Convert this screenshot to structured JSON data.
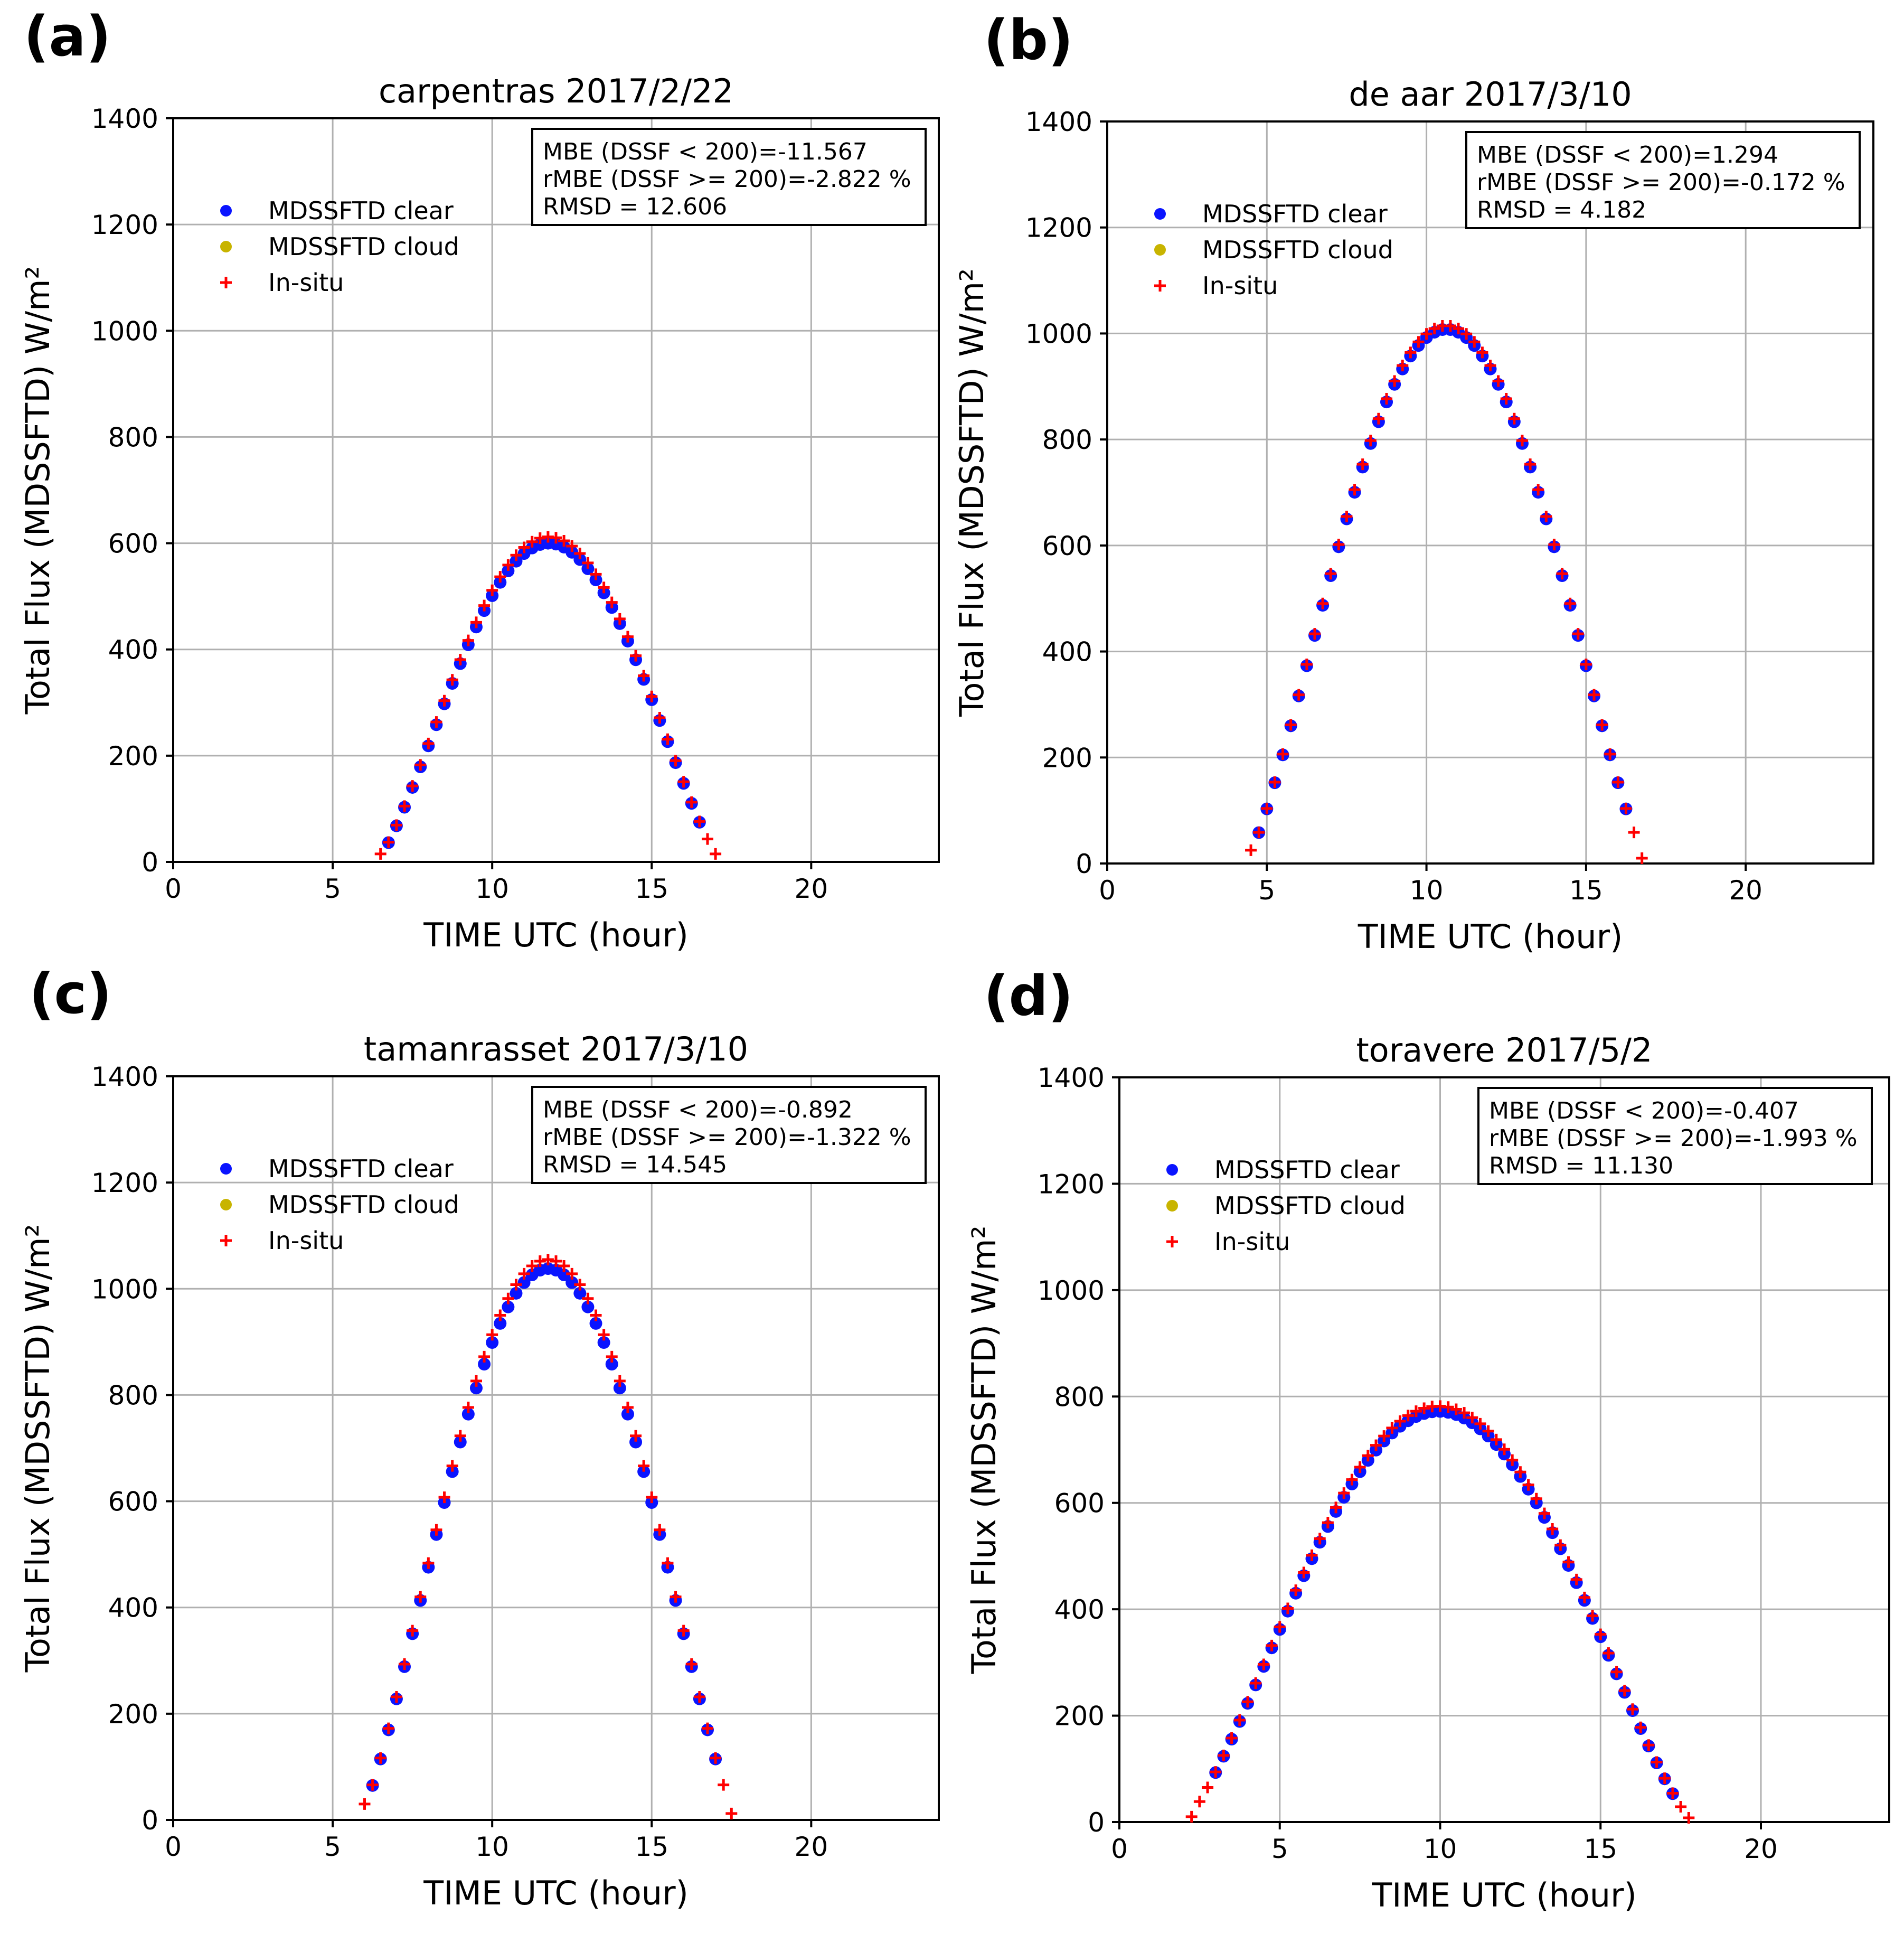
{
  "colors": {
    "clear": "#0a14ff",
    "cloud": "#c8b400",
    "insitu": "#ff0000"
  },
  "legend": {
    "clear": "MDSSFTD clear",
    "cloud": "MDSSFTD cloud",
    "insitu": "In-situ"
  },
  "chart_data": [
    {
      "type": "scatter",
      "panel_letter": "(a)",
      "title": "carpentras  2017/2/22",
      "xlabel": "TIME UTC (hour)",
      "ylabel": "Total Flux (MDSSFTD) W/m²",
      "xlim": [
        0,
        24
      ],
      "ylim": [
        0,
        1400
      ],
      "xticks": [
        0,
        5,
        10,
        15,
        20
      ],
      "yticks": [
        0,
        200,
        400,
        600,
        800,
        1000,
        1200,
        1400
      ],
      "grid": true,
      "legend_position": "upper-left",
      "stats": [
        "MBE (DSSF < 200)=-11.567",
        "rMBE (DSSF >= 200)=-2.822 %",
        "RMSD = 12.606"
      ],
      "insitu": {
        "start": 6.5,
        "step": 0.25,
        "count": 43,
        "t0": 6.35,
        "t1": 17.2,
        "peak": 612,
        "first": 15,
        "last": 15
      },
      "clear": {
        "start": 6.75,
        "step": 0.25,
        "count": 40,
        "t0": 6.35,
        "t1": 17.2,
        "peak": 600
      }
    },
    {
      "type": "scatter",
      "panel_letter": "(b)",
      "title": "de aar  2017/3/10",
      "xlabel": "TIME UTC (hour)",
      "ylabel": "Total Flux (MDSSFTD) W/m²",
      "xlim": [
        0,
        24
      ],
      "ylim": [
        0,
        1400
      ],
      "xticks": [
        0,
        5,
        10,
        15,
        20
      ],
      "yticks": [
        0,
        200,
        400,
        600,
        800,
        1000,
        1200,
        1400
      ],
      "grid": true,
      "legend_position": "upper-left",
      "stats": [
        "MBE (DSSF < 200)=1.294",
        "rMBE (DSSF >= 200)=-0.172 %",
        "RMSD = 4.182"
      ],
      "insitu": {
        "start": 4.5,
        "step": 0.25,
        "count": 50,
        "t0": 4.3,
        "t1": 16.95,
        "peak": 1015,
        "first": 25,
        "last": 10
      },
      "clear": {
        "start": 4.75,
        "step": 0.25,
        "count": 47,
        "t0": 4.3,
        "t1": 16.95,
        "peak": 1008
      }
    },
    {
      "type": "scatter",
      "panel_letter": "(c)",
      "title": "tamanrasset  2017/3/10",
      "xlabel": "TIME UTC (hour)",
      "ylabel": "Total Flux (MDSSFTD) W/m²",
      "xlim": [
        0,
        24
      ],
      "ylim": [
        0,
        1400
      ],
      "xticks": [
        0,
        5,
        10,
        15,
        20
      ],
      "yticks": [
        0,
        200,
        400,
        600,
        800,
        1000,
        1200,
        1400
      ],
      "grid": true,
      "legend_position": "upper-left",
      "stats": [
        "MBE (DSSF < 200)=-0.892",
        "rMBE (DSSF >= 200)=-1.322 %",
        "RMSD = 14.545"
      ],
      "insitu": {
        "start": 6.0,
        "step": 0.25,
        "count": 47,
        "t0": 5.8,
        "t1": 17.7,
        "peak": 1055,
        "first": 30,
        "last": 12
      },
      "clear": {
        "start": 6.25,
        "step": 0.25,
        "count": 44,
        "t0": 5.8,
        "t1": 17.7,
        "peak": 1038
      }
    },
    {
      "type": "scatter",
      "panel_letter": "(d)",
      "title": "toravere  2017/5/2",
      "xlabel": "TIME UTC (hour)",
      "ylabel": "Total Flux (MDSSFTD) W/m²",
      "xlim": [
        0,
        24
      ],
      "ylim": [
        0,
        1400
      ],
      "xticks": [
        0,
        5,
        10,
        15,
        20
      ],
      "yticks": [
        0,
        200,
        400,
        600,
        800,
        1000,
        1200,
        1400
      ],
      "grid": true,
      "legend_position": "upper-left",
      "stats": [
        "MBE (DSSF < 200)=-0.407",
        "rMBE (DSSF >= 200)=-1.993 %",
        "RMSD = 11.130"
      ],
      "insitu": {
        "start": 2.25,
        "step": 0.25,
        "count": 63,
        "t0": 2.0,
        "t1": 17.9,
        "peak": 782,
        "first": 10,
        "last": 8
      },
      "clear": {
        "start": 3.0,
        "step": 0.25,
        "count": 58,
        "t0": 2.0,
        "t1": 17.9,
        "peak": 772
      }
    }
  ]
}
